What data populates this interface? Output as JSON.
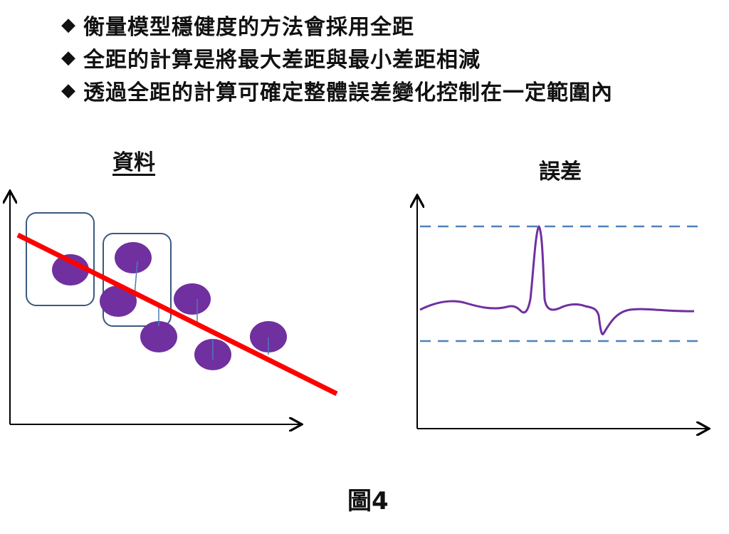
{
  "bullets": [
    {
      "marker": "◆",
      "text": "衡量模型穩健度的方法會採用全距"
    },
    {
      "marker": "◆",
      "text": "全距的計算是將最大差距與最小差距相減"
    },
    {
      "marker": "◆",
      "text": "透過全距的計算可確定整體誤差變化控制在一定範圍內"
    }
  ],
  "left_panel": {
    "title": "資料"
  },
  "right_panel": {
    "title": "誤差"
  },
  "caption": "圖4",
  "colors": {
    "regression_line": "#ff0000",
    "data_points": "#7030a0",
    "group_boxes": "#3a5a80",
    "residual_lines": "#4a7ab8",
    "error_curve": "#7030a0",
    "bound_lines": "#4f81bd",
    "axes": "#000000"
  }
}
